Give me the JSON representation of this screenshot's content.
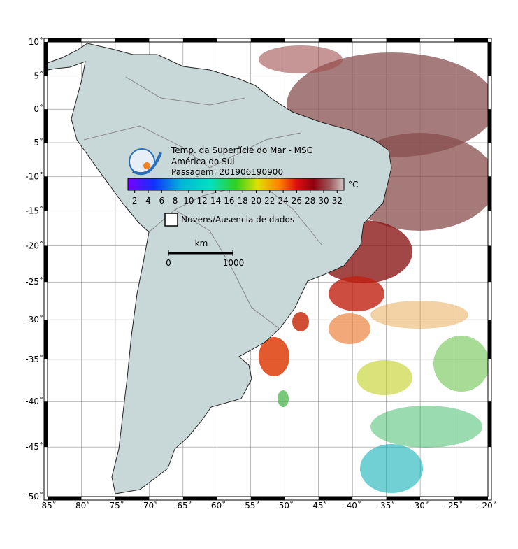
{
  "map": {
    "lon_range": [
      -85,
      -20
    ],
    "lat_range": [
      -50,
      10
    ],
    "lon_ticks": [
      {
        "value": -85,
        "label": "-85˚"
      },
      {
        "value": -80,
        "label": "-80˚"
      },
      {
        "value": -75,
        "label": "-75˚"
      },
      {
        "value": -70,
        "label": "-70˚"
      },
      {
        "value": -65,
        "label": "-65˚"
      },
      {
        "value": -60,
        "label": "-60˚"
      },
      {
        "value": -55,
        "label": "-55˚"
      },
      {
        "value": -50,
        "label": "-50˚"
      },
      {
        "value": -45,
        "label": "-45˚"
      },
      {
        "value": -40,
        "label": "-40˚"
      },
      {
        "value": -35,
        "label": "-35˚"
      },
      {
        "value": -30,
        "label": "-30˚"
      },
      {
        "value": -25,
        "label": "-25˚"
      },
      {
        "value": -20,
        "label": "-20˚"
      }
    ],
    "lat_ticks": [
      {
        "value": 10,
        "label": "10˚"
      },
      {
        "value": 5,
        "label": "5˚"
      },
      {
        "value": 0,
        "label": "0˚"
      },
      {
        "value": -5,
        "label": "-5˚"
      },
      {
        "value": -10,
        "label": "-10˚"
      },
      {
        "value": -15,
        "label": "-15˚"
      },
      {
        "value": -20,
        "label": "-20˚"
      },
      {
        "value": -25,
        "label": "-25˚"
      },
      {
        "value": -30,
        "label": "-30˚"
      },
      {
        "value": -35,
        "label": "-35˚"
      },
      {
        "value": -40,
        "label": "-40˚"
      },
      {
        "value": -45,
        "label": "-45˚"
      },
      {
        "value": -50,
        "label": "-50˚"
      }
    ]
  },
  "header": {
    "lines": [
      "Temp. da Superfície do Mar - MSG",
      "América do Sul",
      "Passagem: 201906190900"
    ]
  },
  "colorbar": {
    "range": [
      1,
      33
    ],
    "ticks": [
      2,
      4,
      6,
      8,
      10,
      12,
      14,
      16,
      18,
      20,
      22,
      24,
      26,
      28,
      30,
      32
    ],
    "unit": "°C"
  },
  "legend": {
    "label": "Nuvens/Ausencia de dados"
  },
  "scale": {
    "unit": "km",
    "start": "0",
    "end": "1000"
  }
}
